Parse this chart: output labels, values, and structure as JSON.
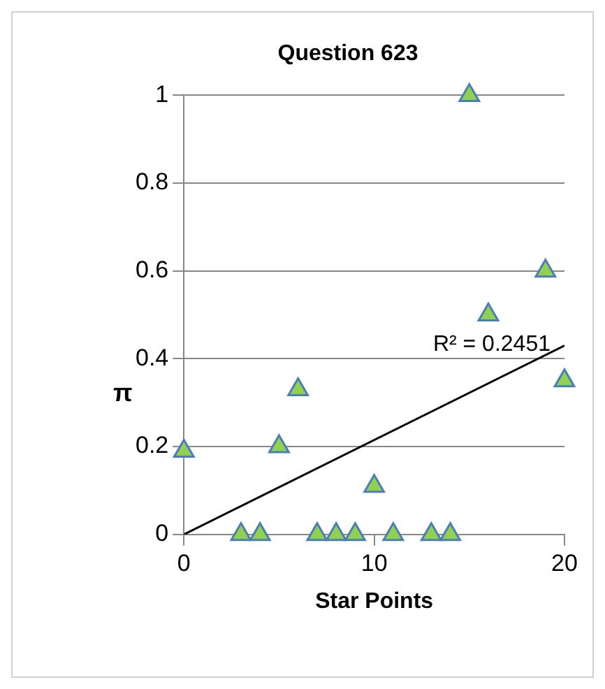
{
  "chart_data": {
    "type": "scatter",
    "title": "Question 623",
    "xlabel": "Star Points",
    "ylabel": "π",
    "x": [
      0,
      3,
      4,
      5,
      6,
      7,
      8,
      9,
      10,
      11,
      13,
      14,
      15,
      16,
      19,
      20
    ],
    "series": [
      {
        "color": "#92d050",
        "marker": "triangle",
        "values": [
          0.19,
          0,
          0,
          0.2,
          0.33,
          0,
          0,
          0,
          0.11,
          0,
          0,
          0,
          1,
          0.5,
          0.6,
          0.35
        ]
      },
      {
        "type": "line",
        "color": "#000000",
        "x": [
          0,
          20
        ],
        "values": [
          0,
          0.43
        ]
      }
    ],
    "annotations": [
      "R² = 0.2451"
    ],
    "xlim": [
      0,
      20
    ],
    "xticks": [
      0,
      10,
      20
    ],
    "ylim": [
      0,
      1
    ],
    "yticks": [
      0,
      0.2,
      0.4,
      0.6,
      0.8,
      1
    ],
    "grid": "y",
    "legend": false
  }
}
